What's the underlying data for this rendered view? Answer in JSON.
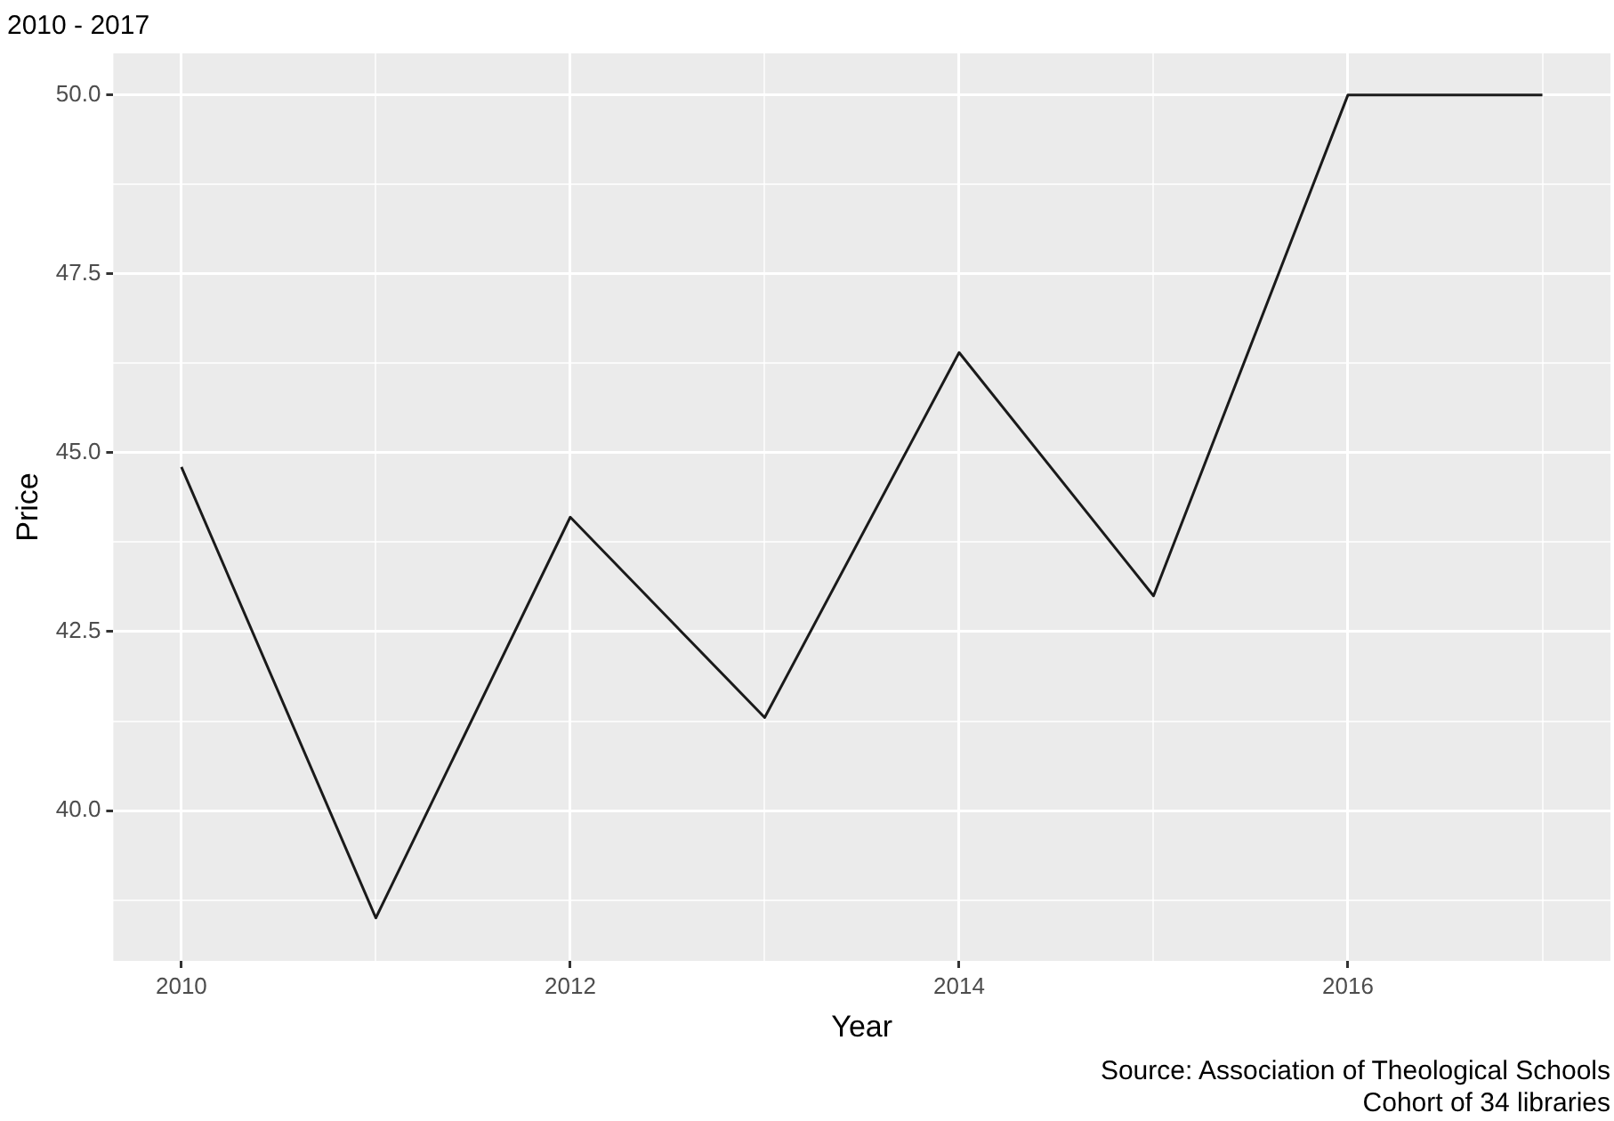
{
  "chart_data": {
    "type": "line",
    "title": "2010 - 2017",
    "xlabel": "Year",
    "ylabel": "Price",
    "x": [
      2010,
      2011,
      2012,
      2013,
      2014,
      2015,
      2016,
      2017
    ],
    "series": [
      {
        "color": "#1a1a1a",
        "values": [
          44.8,
          38.5,
          44.1,
          41.3,
          46.4,
          43.0,
          50.0,
          50.0
        ]
      }
    ],
    "xlim": [
      2009.65,
      2017.35
    ],
    "xticks": [
      2010,
      {
        "value": 2011,
        "label": null
      },
      2012,
      {
        "value": 2013,
        "label": null
      },
      2014,
      {
        "value": 2015,
        "label": null
      },
      2016,
      {
        "value": 2017,
        "label": null
      }
    ],
    "ylim": [
      37.9,
      50.58
    ],
    "yticks": [
      {
        "value": 38.75,
        "label": null
      },
      {
        "value": 40,
        "label": "40.0"
      },
      {
        "value": 41.25,
        "label": null
      },
      {
        "value": 42.5,
        "label": "42.5"
      },
      {
        "value": 43.75,
        "label": null
      },
      {
        "value": 45,
        "label": "45.0"
      },
      {
        "value": 46.25,
        "label": null
      },
      {
        "value": 47.5,
        "label": "47.5"
      },
      {
        "value": 48.75,
        "label": null
      },
      {
        "value": 50,
        "label": "50.0"
      }
    ],
    "grid": true,
    "legend": false,
    "marker": "none",
    "line_style": "solid",
    "annotations": [
      "Source: Association of Theological Schools",
      "Cohort of 34 libraries"
    ]
  }
}
